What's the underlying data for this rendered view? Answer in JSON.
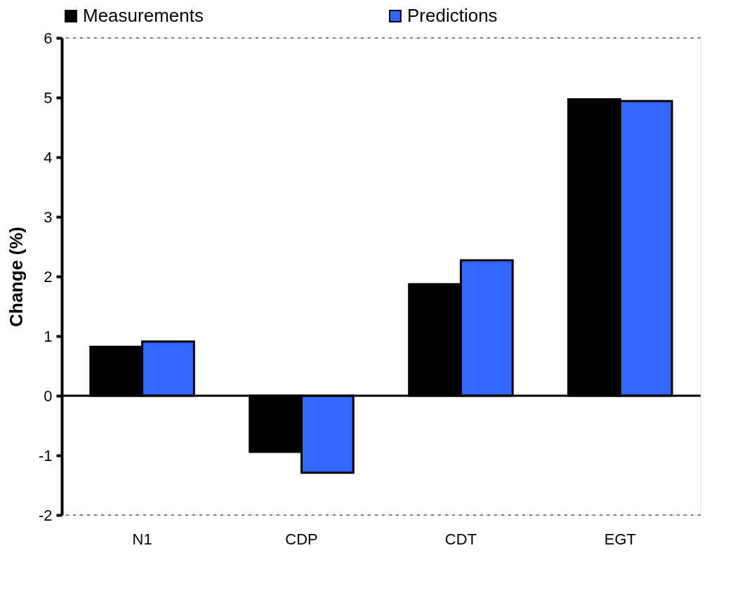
{
  "chart_data": {
    "type": "bar",
    "ylabel": "Change (%)",
    "categories": [
      "N1",
      "CDP",
      "CDT",
      "EGT"
    ],
    "series": [
      {
        "name": "Measurements",
        "color": "#000000",
        "values": [
          0.82,
          -0.94,
          1.87,
          4.97
        ]
      },
      {
        "name": "Predictions",
        "color": "#3366ff",
        "values": [
          0.91,
          -1.29,
          2.27,
          4.94
        ]
      }
    ],
    "ylim": [
      -2,
      6
    ],
    "yticks": [
      -2,
      -1,
      0,
      1,
      2,
      3,
      4,
      5,
      6
    ],
    "grid": false,
    "legend": "top",
    "ref_lines": [
      {
        "axis": "y",
        "value": 0,
        "color": "#000000",
        "line_style": "solid"
      },
      {
        "axis": "y",
        "value": 6,
        "color": "#808080",
        "line_style": "dashed"
      },
      {
        "axis": "y",
        "value": -2,
        "color": "#808080",
        "line_style": "dashed"
      }
    ]
  }
}
